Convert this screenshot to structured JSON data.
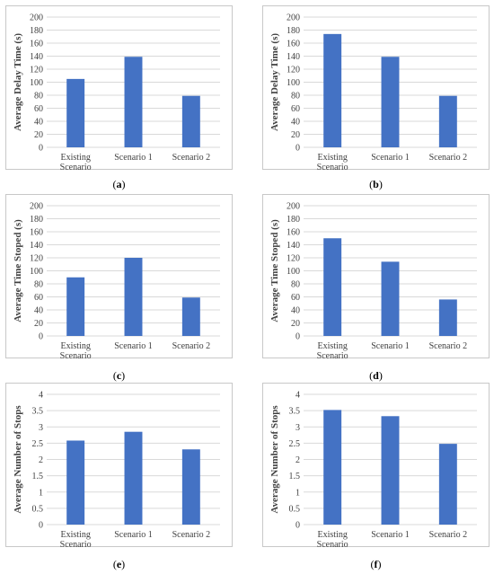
{
  "colors": {
    "bar": "#4472c4",
    "grid": "#d9d9d9",
    "axis_text": "#404040",
    "border": "#c8c8c8"
  },
  "charts": [
    {
      "id": "a",
      "caption": {
        "open": "(",
        "letter": "a",
        "close": ")"
      }
    },
    {
      "id": "b",
      "caption": {
        "open": "(",
        "letter": "b",
        "close": ")"
      }
    },
    {
      "id": "c",
      "caption": {
        "open": "(",
        "letter": "c",
        "close": ")"
      }
    },
    {
      "id": "d",
      "caption": {
        "open": "(",
        "letter": "d",
        "close": ")"
      }
    },
    {
      "id": "e",
      "caption": {
        "open": "(",
        "letter": "e",
        "close": ")"
      }
    },
    {
      "id": "f",
      "caption": {
        "open": "(",
        "letter": "f",
        "close": ")"
      }
    }
  ],
  "chart_data": [
    {
      "type": "bar",
      "categories": [
        [
          "Existing",
          "Scenario"
        ],
        [
          "Scenario 1"
        ],
        [
          "Scenario 2"
        ]
      ],
      "values": [
        105,
        139,
        79
      ],
      "ylabel": "Average Delay Time (s)",
      "ylim": [
        0,
        200
      ],
      "ystep": 20,
      "yticks": [
        "0",
        "20",
        "40",
        "60",
        "80",
        "100",
        "120",
        "140",
        "160",
        "180",
        "200"
      ],
      "grid": true
    },
    {
      "type": "bar",
      "categories": [
        [
          "Existing",
          "Scenario"
        ],
        [
          "Scenario 1"
        ],
        [
          "Scenario 2"
        ]
      ],
      "values": [
        174,
        139,
        79
      ],
      "ylabel": "Average Delay Time (s)",
      "ylim": [
        0,
        200
      ],
      "ystep": 20,
      "yticks": [
        "0",
        "20",
        "40",
        "60",
        "80",
        "100",
        "120",
        "140",
        "160",
        "180",
        "200"
      ],
      "grid": true
    },
    {
      "type": "bar",
      "categories": [
        [
          "Existing",
          "Scenario"
        ],
        [
          "Scenario 1"
        ],
        [
          "Scenario 2"
        ]
      ],
      "values": [
        90,
        120,
        59
      ],
      "ylabel": "Average Time Stoped (s)",
      "ylim": [
        0,
        200
      ],
      "ystep": 20,
      "yticks": [
        "0",
        "20",
        "40",
        "60",
        "80",
        "100",
        "120",
        "140",
        "160",
        "180",
        "200"
      ],
      "grid": true
    },
    {
      "type": "bar",
      "categories": [
        [
          "Existing",
          "Scenario"
        ],
        [
          "Scenario 1"
        ],
        [
          "Scenario 2"
        ]
      ],
      "values": [
        150,
        114,
        56
      ],
      "ylabel": "Average Time Stoped (s)",
      "ylim": [
        0,
        200
      ],
      "ystep": 20,
      "yticks": [
        "0",
        "20",
        "40",
        "60",
        "80",
        "100",
        "120",
        "140",
        "160",
        "180",
        "200"
      ],
      "grid": true
    },
    {
      "type": "bar",
      "categories": [
        [
          "Existing",
          "Scenario"
        ],
        [
          "Scenario 1"
        ],
        [
          "Scenario 2"
        ]
      ],
      "values": [
        2.58,
        2.85,
        2.31
      ],
      "ylabel": "Average Number of Stops",
      "ylim": [
        0,
        4
      ],
      "ystep": 0.5,
      "yticks": [
        "0",
        "0.5",
        "1",
        "1.5",
        "2",
        "2.5",
        "3",
        "3.5",
        "4"
      ],
      "grid": true
    },
    {
      "type": "bar",
      "categories": [
        [
          "Existing",
          "Scenario"
        ],
        [
          "Scenario 1"
        ],
        [
          "Scenario 2"
        ]
      ],
      "values": [
        3.52,
        3.33,
        2.48
      ],
      "ylabel": "Average Number of Stops",
      "ylim": [
        0,
        4
      ],
      "ystep": 0.5,
      "yticks": [
        "0",
        "0.5",
        "1",
        "1.5",
        "2",
        "2.5",
        "3",
        "3.5",
        "4"
      ],
      "grid": true
    }
  ]
}
